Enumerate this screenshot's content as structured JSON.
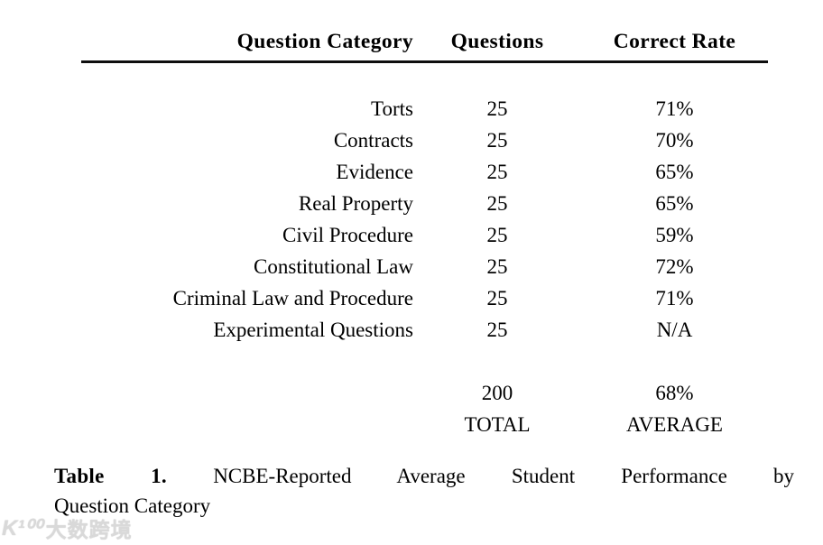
{
  "table": {
    "columns": [
      "Question Category",
      "Questions",
      "Correct Rate"
    ],
    "rows": [
      {
        "category": "Torts",
        "questions": "25",
        "correct_rate": "71%"
      },
      {
        "category": "Contracts",
        "questions": "25",
        "correct_rate": "70%"
      },
      {
        "category": "Evidence",
        "questions": "25",
        "correct_rate": "65%"
      },
      {
        "category": "Real Property",
        "questions": "25",
        "correct_rate": "65%"
      },
      {
        "category": "Civil Procedure",
        "questions": "25",
        "correct_rate": "59%"
      },
      {
        "category": "Constitutional Law",
        "questions": "25",
        "correct_rate": "72%"
      },
      {
        "category": "Criminal Law and Procedure",
        "questions": "25",
        "correct_rate": "71%"
      },
      {
        "category": "Experimental Questions",
        "questions": "25",
        "correct_rate": "N/A"
      }
    ],
    "totals": {
      "questions_value": "200",
      "questions_label": "TOTAL",
      "rate_value": "68%",
      "rate_label": "AVERAGE"
    }
  },
  "caption": {
    "label": "Table 1.",
    "line1_rest": "NCBE-Reported Average Student Performance by",
    "line2": "Question Category"
  },
  "watermark": {
    "logo": "K¹⁰⁰",
    "text": "大数跨境"
  },
  "colors": {
    "text": "#000000",
    "background": "#ffffff",
    "rule": "#0e0e0e",
    "watermark": "#d9d9d9"
  }
}
